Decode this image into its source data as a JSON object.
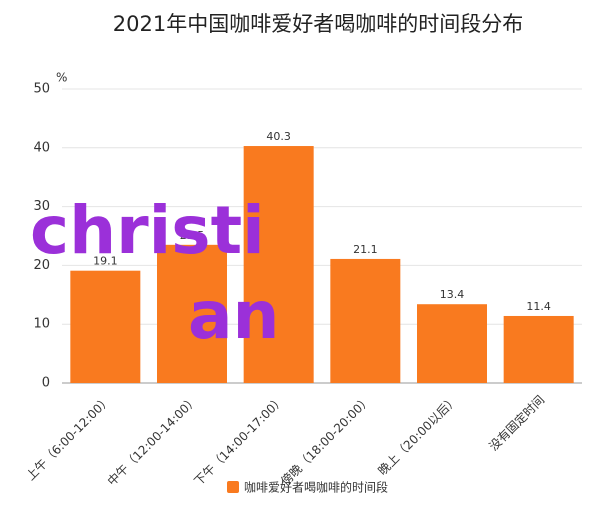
{
  "chart_data": {
    "type": "bar",
    "title": "2021年中国咖啡爱好者喝咖啡的时间段分布",
    "y_unit": "%",
    "categories": [
      "上午（6:00-12:00）",
      "中午（12:00-14:00）",
      "下午（14:00-17:00）",
      "傍晚（18:00-20:00）",
      "晚上（20:00以后）",
      "没有固定时间"
    ],
    "series": [
      {
        "name": "咖啡爱好者喝咖啡的时间段",
        "color": "#f97a1f",
        "values": [
          19.1,
          23.5,
          40.3,
          21.1,
          13.4,
          11.4
        ]
      }
    ],
    "ylim": [
      0,
      50
    ],
    "yticks": [
      0,
      10,
      20,
      30,
      40,
      50
    ],
    "grid": true,
    "watermark_lines": [
      "christi",
      "an"
    ]
  }
}
